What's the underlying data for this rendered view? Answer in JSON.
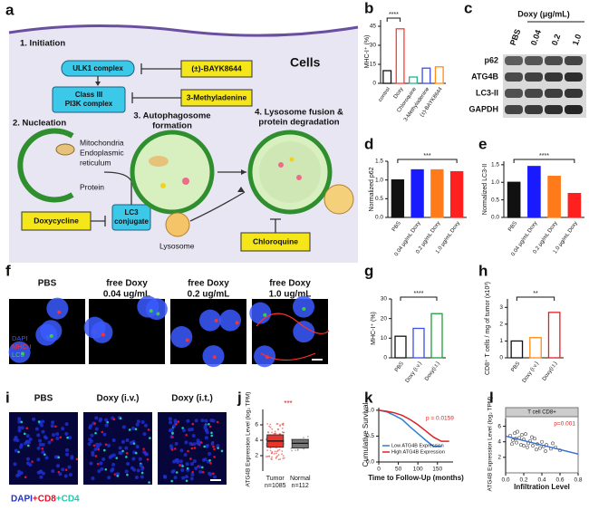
{
  "panel_letters": [
    "a",
    "b",
    "c",
    "d",
    "e",
    "f",
    "g",
    "h",
    "i",
    "j",
    "k",
    "l"
  ],
  "diagram": {
    "cells": "Cells",
    "steps": [
      [
        "1. Initiation"
      ],
      [
        "2. Nucleation"
      ],
      [
        "3. Autophagosome",
        "formation"
      ],
      [
        "4. Lysosome fusion &",
        "protein degradation"
      ]
    ],
    "boxes": [
      [
        "ULK1 complex"
      ],
      [
        "Class III",
        "PI3K complex"
      ],
      [
        "LC3",
        "conjugate"
      ]
    ],
    "drugs": [
      "(±)-BAYK8644",
      "3-Methyladenine",
      "Doxycycline",
      "Chloroquine"
    ],
    "organelles": [
      "Mitochondria",
      "Endoplasmic",
      "reticulum",
      "Protein",
      "Lysosome"
    ]
  },
  "blot": {
    "header": "Doxy (μg/mL)",
    "lanes": [
      "PBS",
      "0.04",
      "0.2",
      "1.0"
    ],
    "rows": [
      "p62",
      "ATG4B",
      "LC3-II",
      "GAPDH"
    ]
  },
  "micro_f": {
    "titles": [
      [
        "PBS"
      ],
      [
        "free Doxy",
        "0.04 ug/mL"
      ],
      [
        "free Doxy",
        "0.2 ug/mL"
      ],
      [
        "free Doxy",
        "1.0 ug/mL"
      ]
    ],
    "stains": [
      "DAPI",
      "MHC-I",
      "LC3"
    ],
    "colors": [
      "#3a5bff",
      "#ff3030",
      "#3ad23a"
    ]
  },
  "micro_i": {
    "titles": [
      "PBS",
      "Doxy (i.v.)",
      "Doxy (i.t.)"
    ],
    "stains": [
      "DAPI",
      "+CD8",
      "+CD4"
    ],
    "colors": [
      "#1f2fd0",
      "#e0102a",
      "#1ec9b0"
    ]
  },
  "chart_data": [
    {
      "type": "bar",
      "ylabel": "MHC-I⁺ (%)",
      "categories": [
        "control",
        "Doxy",
        "Chloroquine",
        "3-Methyladenine",
        "(±)-BAYK8644"
      ],
      "values": [
        10,
        43,
        5,
        12,
        13
      ],
      "colors": [
        "#111111",
        "#ff3b30",
        "#1fb58a",
        "#3b4fe0",
        "#ff8c1a"
      ],
      "ylim": [
        0,
        50
      ],
      "yticks": [
        0,
        15,
        30,
        45
      ],
      "style": "outline",
      "significance": "****"
    },
    {
      "type": "bar",
      "ylabel": "Normalized p62",
      "categories": [
        "PBS",
        "0.04 μg/mL Doxy",
        "0.2 μg/mL Doxy",
        "1.0 μg/mL Doxy"
      ],
      "values": [
        1.0,
        1.27,
        1.27,
        1.22
      ],
      "colors": [
        "#111111",
        "#1a1aff",
        "#ff7a1a",
        "#ff2020"
      ],
      "ylim": [
        0,
        1.5
      ],
      "yticks": [
        {
          "value": 0,
          "label": "0.0"
        },
        {
          "value": 0.5,
          "label": "0.5"
        },
        {
          "value": 1,
          "label": "1.0"
        },
        {
          "value": 1.5,
          "label": "1.5"
        }
      ],
      "style": "filled",
      "significance": "***"
    },
    {
      "type": "bar",
      "ylabel": "Normalized LC3-II",
      "categories": [
        "PBS",
        "0.04 μg/mL Doxy",
        "0.2 μg/mL Doxy",
        "1.0 μg/mL Doxy"
      ],
      "values": [
        1.0,
        1.45,
        1.17,
        0.68
      ],
      "colors": [
        "#111111",
        "#1a1aff",
        "#ff7a1a",
        "#ff2020"
      ],
      "ylim": [
        0,
        1.6
      ],
      "yticks": [
        {
          "value": 0,
          "label": "0.0"
        },
        {
          "value": 0.5,
          "label": "0.5"
        },
        {
          "value": 1,
          "label": "1.0"
        },
        {
          "value": 1.5,
          "label": "1.5"
        }
      ],
      "style": "filled",
      "significance": "****"
    },
    {
      "type": "bar",
      "ylabel": "MHC-I⁺ (%)",
      "categories": [
        "PBS",
        "Doxy (i.v.)",
        "Doxy(i.t.)"
      ],
      "values": [
        11,
        15,
        22.5
      ],
      "colors": [
        "#111111",
        "#3b4fe0",
        "#1f9e3a"
      ],
      "ylim": [
        0,
        30
      ],
      "yticks": [
        0,
        10,
        20,
        30
      ],
      "style": "outline",
      "significance": "****"
    },
    {
      "type": "bar",
      "ylabel": "CD8⁺ T cells / mg of tumor (x10³)",
      "categories": [
        "PBS",
        "Doxy (i.v.)",
        "Doxy(i.t.)"
      ],
      "values": [
        1.0,
        1.2,
        2.7
      ],
      "colors": [
        "#111111",
        "#ff8c1a",
        "#e02020"
      ],
      "ylim": [
        0,
        3.5
      ],
      "yticks": [
        0,
        1,
        2,
        3
      ],
      "style": "outline",
      "significance": "**"
    },
    {
      "type": "box",
      "ylabel": "ATG4B Expression Level (log₂ TPM)",
      "categories": [
        "Tumor",
        "Normal"
      ],
      "sublabels": [
        "n=1085",
        "n=112"
      ],
      "values": [
        3.9,
        3.6
      ],
      "q1": [
        3.1,
        3.0
      ],
      "q3": [
        4.7,
        4.1
      ],
      "colors": [
        "#e8352c",
        "#777777"
      ],
      "ylim": [
        0,
        8
      ],
      "yticks": [
        2,
        4,
        6
      ],
      "significance": "***"
    },
    {
      "type": "line",
      "ylabel": "Cumulative Survival",
      "xlabel": "Time to Follow-Up (months)",
      "annotation": "p = 0.0159",
      "x": [
        0,
        20,
        40,
        60,
        80,
        100,
        120,
        140,
        160,
        180
      ],
      "xlim": [
        0,
        190
      ],
      "xticks": [
        0,
        50,
        100,
        150
      ],
      "ylim": [
        0,
        1.05
      ],
      "yticks": [
        {
          "value": 0,
          "label": "0.0"
        },
        {
          "value": 0.5,
          "label": "0.5"
        },
        {
          "value": 1,
          "label": "1.0"
        }
      ],
      "series": [
        {
          "name": "Low ATG4B Expression",
          "color": "#2f7fd0",
          "values": [
            1,
            0.97,
            0.9,
            0.82,
            0.68,
            0.55,
            0.42,
            0.3,
            0.3,
            null
          ]
        },
        {
          "name": "High ATG4B Expression",
          "color": "#e02020",
          "values": [
            1,
            0.98,
            0.95,
            0.9,
            0.82,
            0.72,
            0.6,
            0.48,
            0.4,
            0.4
          ]
        }
      ]
    },
    {
      "type": "scatter",
      "title": "T cell CD8+",
      "ylabel": "ATG4B Expression Level (log₂ TPM)",
      "xlabel": "Infiltration Level",
      "annotation": "p=0.001",
      "color": "#444444",
      "xlim": [
        0,
        0.8
      ],
      "xticks": [
        {
          "value": 0,
          "label": "0.0"
        },
        {
          "value": 0.2,
          "label": "0.2"
        },
        {
          "value": 0.4,
          "label": "0.4"
        },
        {
          "value": 0.6,
          "label": "0.6"
        },
        {
          "value": 0.8,
          "label": "0.8"
        }
      ],
      "ylim": [
        0,
        7
      ],
      "yticks": [
        2,
        4,
        6
      ],
      "x": [
        0.05,
        0.08,
        0.1,
        0.12,
        0.15,
        0.17,
        0.2,
        0.22,
        0.25,
        0.27,
        0.3,
        0.32,
        0.35,
        0.38,
        0.4,
        0.42,
        0.45,
        0.5,
        0.55,
        0.6,
        0.07,
        0.13,
        0.18,
        0.24,
        0.29,
        0.34,
        0.44,
        0.52,
        0.11,
        0.2
      ],
      "y": [
        4.8,
        4.2,
        5.1,
        3.9,
        4.5,
        3.6,
        4.3,
        5.0,
        3.8,
        4.1,
        3.5,
        4.4,
        3.7,
        3.2,
        4.0,
        3.4,
        3.6,
        3.1,
        3.3,
        2.9,
        3.7,
        5.3,
        4.9,
        3.3,
        4.6,
        3.0,
        2.8,
        3.8,
        4.4,
        3.5
      ]
    }
  ]
}
